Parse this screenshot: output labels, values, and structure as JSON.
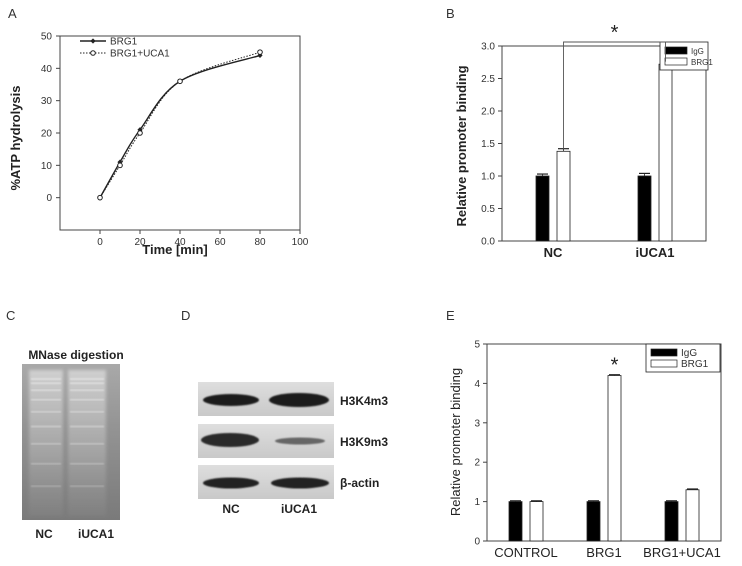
{
  "panels": {
    "a": "A",
    "b": "B",
    "c": "C",
    "d": "D",
    "e": "E"
  },
  "panel_c": {
    "title": "MNase digestion",
    "lanes": [
      "NC",
      "iUCA1"
    ]
  },
  "panel_d": {
    "rows": [
      "H3K4m3",
      "H3K9m3",
      "β-actin"
    ],
    "lanes": [
      "NC",
      "iUCA1"
    ]
  },
  "chart_data": [
    {
      "id": "A",
      "type": "line",
      "xlabel": "Time [min]",
      "ylabel": "%ATP hydrolysis",
      "xlim": [
        -20,
        100
      ],
      "ylim": [
        -10,
        50
      ],
      "xticks": [
        0,
        20,
        40,
        60,
        80,
        100
      ],
      "yticks": [
        0,
        10,
        20,
        30,
        40,
        50
      ],
      "legend_position": "top-left",
      "series": [
        {
          "name": "BRG1",
          "style": "solid",
          "x": [
            0,
            10,
            20,
            40,
            80
          ],
          "y": [
            0,
            11,
            21,
            36,
            44
          ]
        },
        {
          "name": "BRG1+UCA1",
          "style": "dotted",
          "x": [
            0,
            10,
            20,
            40,
            80
          ],
          "y": [
            0,
            10,
            20,
            36,
            45
          ]
        }
      ]
    },
    {
      "id": "B",
      "type": "bar",
      "ylabel": "Relative promoter binding",
      "ylim": [
        0,
        3.0
      ],
      "yticks": [
        "0.0",
        "0.5",
        "1.0",
        "1.5",
        "2.0",
        "2.5",
        "3.0"
      ],
      "categories": [
        "NC",
        "iUCA1"
      ],
      "legend_position": "top-right",
      "series": [
        {
          "name": "IgG",
          "color": "#000000",
          "values": [
            1.0,
            1.0
          ],
          "errors": [
            0.03,
            0.04
          ]
        },
        {
          "name": "BRG1",
          "color": "#ffffff",
          "values": [
            1.38,
            2.72
          ],
          "errors": [
            0.04,
            0.04
          ]
        }
      ],
      "annotations": [
        {
          "text": "*",
          "between": [
            "NC",
            "iUCA1"
          ]
        }
      ]
    },
    {
      "id": "E",
      "type": "bar",
      "ylabel": "Relative promoter binding",
      "ylim": [
        0,
        5
      ],
      "yticks": [
        "0",
        "1",
        "2",
        "3",
        "4",
        "5"
      ],
      "categories": [
        "CONTROL",
        "BRG1",
        "BRG1+UCA1"
      ],
      "legend_position": "top-right",
      "series": [
        {
          "name": "IgG",
          "color": "#000000",
          "values": [
            1.0,
            1.0,
            1.0
          ],
          "errors": [
            0.02,
            0.02,
            0.02
          ]
        },
        {
          "name": "BRG1",
          "color": "#ffffff",
          "values": [
            1.0,
            4.2,
            1.3
          ],
          "errors": [
            0.02,
            0.02,
            0.02
          ]
        }
      ],
      "annotations": [
        {
          "text": "*",
          "above": "BRG1"
        }
      ]
    }
  ]
}
